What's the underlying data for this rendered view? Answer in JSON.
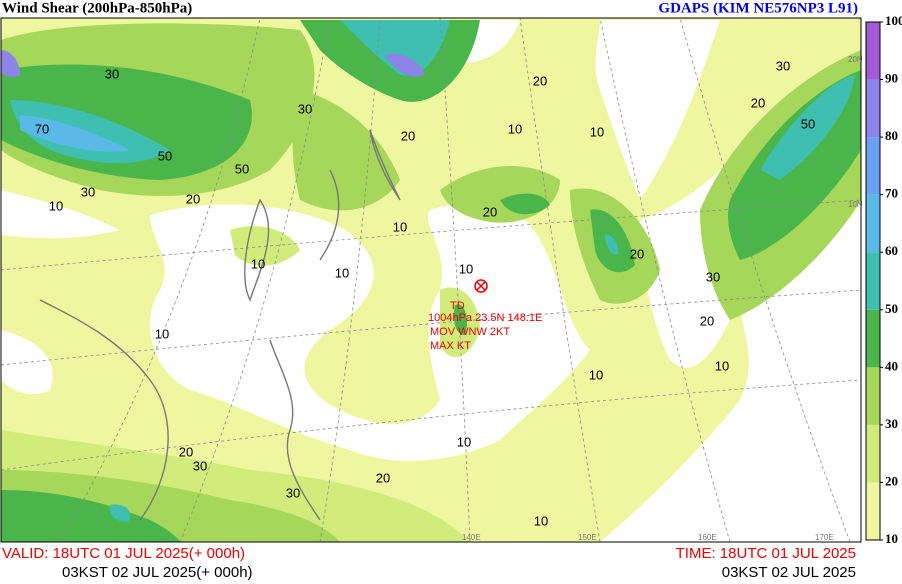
{
  "header": {
    "title": "Wind Shear (200hPa-850hPa)",
    "model": "GDAPS (KIM NE576NP3 L91)"
  },
  "colorbar": {
    "ticks": [
      10,
      20,
      30,
      40,
      50,
      60,
      70,
      80,
      90,
      100
    ],
    "colors": [
      "#eef7a0",
      "#d2ec7c",
      "#a6d65a",
      "#4ab54a",
      "#3fbfaf",
      "#5ab9e6",
      "#6aa0f0",
      "#8c84e8",
      "#a45ad6"
    ]
  },
  "storm": {
    "lines": [
      "TD",
      "1004hPa 23.5N 148.1E",
      "MOV    WNW 2KT",
      "MAX      KT"
    ]
  },
  "contour_labels": [
    "30",
    "70",
    "50",
    "50",
    "30",
    "20",
    "10",
    "10",
    "30",
    "20",
    "10",
    "20",
    "10",
    "20",
    "10",
    "10",
    "50",
    "30",
    "20",
    "10",
    "10",
    "20",
    "10",
    "10",
    "20",
    "30",
    "30",
    "20",
    "10",
    "10",
    "30",
    "20"
  ],
  "geo_labels": [
    "140E",
    "150E",
    "160E",
    "170E",
    "20N",
    "10N"
  ],
  "footer": {
    "valid": "VALID: 18UTC 01 JUL 2025(+ 000h)",
    "valid_kst": "03KST 02 JUL 2025(+ 000h)",
    "time": "TIME: 18UTC 01 JUL 2025",
    "time_kst": "03KST 02 JUL 2025"
  }
}
